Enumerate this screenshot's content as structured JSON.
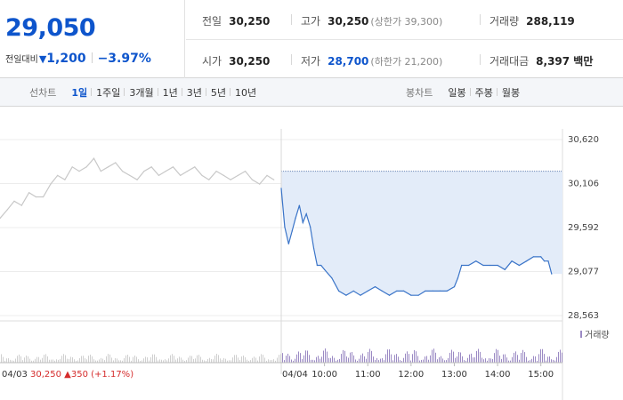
{
  "summary": {
    "current_price": "29,050",
    "change_label": "전일대비",
    "change_arrow": "▼",
    "change_value": "1,200",
    "change_rate": "−3.97%"
  },
  "stats": {
    "prev_close": {
      "label": "전일",
      "value": "30,250"
    },
    "high": {
      "label": "고가",
      "value": "30,250",
      "sub": "(상한가 39,300)"
    },
    "volume": {
      "label": "거래량",
      "value": "288,119"
    },
    "open": {
      "label": "시가",
      "value": "30,250"
    },
    "low": {
      "label": "저가",
      "value": "28,700",
      "sub": "(하한가 21,200)"
    },
    "trade_value": {
      "label": "거래대금",
      "value": "8,397 백만"
    }
  },
  "period_bar": {
    "line_label": "선차트",
    "line_periods": [
      "1일",
      "1주일",
      "3개월",
      "1년",
      "3년",
      "5년",
      "10년"
    ],
    "active_period": "1일",
    "candle_label": "봉차트",
    "candle_periods": [
      "일봉",
      "주봉",
      "월봉"
    ]
  },
  "colors": {
    "price_blue": "#0e55cc",
    "up_red": "#d52c2c",
    "prev_day_line": "#c8c8c8",
    "today_line": "#3a74c8",
    "area_fill": "#e3ecf9",
    "volume_purple": "#9b8ac4"
  },
  "chart_data": {
    "type": "line",
    "y_ticks": [
      "30,620",
      "30,106",
      "29,592",
      "29,077",
      "28,563"
    ],
    "ylim": [
      28563,
      30620
    ],
    "reference_price": 30250,
    "x_ticks": [
      "10:00",
      "11:00",
      "12:00",
      "13:00",
      "14:00",
      "15:00"
    ],
    "prev_day_label": "04/03",
    "today_label": "04/04",
    "prev_day_summary": {
      "price": "30,250",
      "arrow": "▲",
      "change": "350",
      "rate": "(+1.17%)"
    },
    "volume_legend": "거래량",
    "grid": true,
    "series": [
      {
        "session": "04/03",
        "x": [
          9.0,
          9.17,
          9.33,
          9.5,
          9.67,
          9.83,
          10.0,
          10.17,
          10.33,
          10.5,
          10.67,
          10.83,
          11.0,
          11.17,
          11.33,
          11.5,
          11.67,
          11.83,
          12.0,
          12.17,
          12.33,
          12.5,
          12.67,
          12.83,
          13.0,
          13.17,
          13.33,
          13.5,
          13.67,
          13.83,
          14.0,
          14.17,
          14.33,
          14.5,
          14.67,
          14.83,
          15.0,
          15.17,
          15.33
        ],
        "values": [
          29700,
          29800,
          29900,
          29850,
          30000,
          29950,
          29950,
          30100,
          30200,
          30150,
          30300,
          30250,
          30300,
          30400,
          30250,
          30300,
          30350,
          30250,
          30200,
          30150,
          30250,
          30300,
          30200,
          30250,
          30300,
          30200,
          30250,
          30300,
          30200,
          30150,
          30250,
          30200,
          30150,
          30200,
          30250,
          30150,
          30100,
          30200,
          30150
        ]
      },
      {
        "session": "04/04",
        "x": [
          9.0,
          9.08,
          9.17,
          9.25,
          9.33,
          9.42,
          9.5,
          9.58,
          9.67,
          9.75,
          9.83,
          9.92,
          10.0,
          10.17,
          10.33,
          10.5,
          10.67,
          10.83,
          11.0,
          11.17,
          11.33,
          11.5,
          11.67,
          11.83,
          12.0,
          12.17,
          12.33,
          12.5,
          12.67,
          12.83,
          13.0,
          13.08,
          13.17,
          13.33,
          13.5,
          13.67,
          13.83,
          14.0,
          14.17,
          14.33,
          14.5,
          14.67,
          14.83,
          15.0,
          15.08,
          15.17,
          15.25
        ],
        "values": [
          30050,
          29600,
          29400,
          29550,
          29700,
          29850,
          29650,
          29750,
          29600,
          29350,
          29150,
          29150,
          29100,
          29000,
          28850,
          28800,
          28850,
          28800,
          28850,
          28900,
          28850,
          28800,
          28850,
          28850,
          28800,
          28800,
          28850,
          28850,
          28850,
          28850,
          28900,
          29000,
          29150,
          29150,
          29200,
          29150,
          29150,
          29150,
          29100,
          29200,
          29150,
          29200,
          29250,
          29250,
          29200,
          29200,
          29050
        ]
      }
    ]
  }
}
